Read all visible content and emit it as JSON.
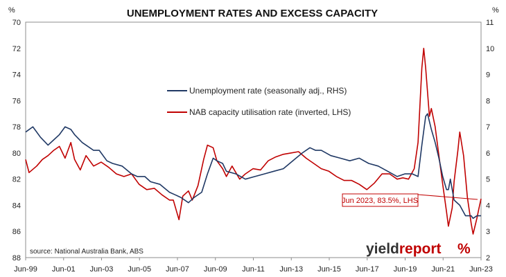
{
  "chart_data": {
    "type": "line",
    "title": "UNEMPLOYMENT RATES AND EXCESS CAPACITY",
    "left_unit": "%",
    "right_unit": "%",
    "left_axis": {
      "min": 70,
      "max": 88,
      "step": 2,
      "inverted": true,
      "ticks": [
        "70",
        "72",
        "74",
        "76",
        "78",
        "80",
        "82",
        "84",
        "86",
        "88"
      ]
    },
    "right_axis": {
      "min": 2,
      "max": 11,
      "step": 1,
      "ticks": [
        "11",
        "10",
        "9",
        "8",
        "7",
        "6",
        "5",
        "4",
        "3",
        "2"
      ]
    },
    "x_ticks": [
      "Jun-99",
      "Jun-01",
      "Jun-03",
      "Jun-05",
      "Jun-07",
      "Jun-09",
      "Jun-11",
      "Jun-13",
      "Jun-15",
      "Jun-17",
      "Jun-19",
      "Jun-21",
      "Jun-23"
    ],
    "x_range": [
      1999.42,
      2023.42
    ],
    "series": [
      {
        "name": "Unemployment rate (seasonally adj., RHS)",
        "axis": "right",
        "color": "#1f3864",
        "points": [
          [
            1999.42,
            6.8
          ],
          [
            1999.8,
            7.0
          ],
          [
            2000.2,
            6.6
          ],
          [
            2000.6,
            6.3
          ],
          [
            2000.9,
            6.5
          ],
          [
            2001.2,
            6.7
          ],
          [
            2001.5,
            7.0
          ],
          [
            2001.8,
            6.9
          ],
          [
            2002.0,
            6.7
          ],
          [
            2002.4,
            6.4
          ],
          [
            2002.8,
            6.2
          ],
          [
            2003.0,
            6.1
          ],
          [
            2003.3,
            6.1
          ],
          [
            2003.7,
            5.7
          ],
          [
            2004.0,
            5.6
          ],
          [
            2004.5,
            5.5
          ],
          [
            2005.0,
            5.2
          ],
          [
            2005.3,
            5.1
          ],
          [
            2005.7,
            5.1
          ],
          [
            2006.0,
            4.9
          ],
          [
            2006.5,
            4.8
          ],
          [
            2007.0,
            4.5
          ],
          [
            2007.3,
            4.4
          ],
          [
            2007.6,
            4.3
          ],
          [
            2008.0,
            4.1
          ],
          [
            2008.3,
            4.3
          ],
          [
            2008.7,
            4.5
          ],
          [
            2009.0,
            5.2
          ],
          [
            2009.3,
            5.8
          ],
          [
            2009.5,
            5.7
          ],
          [
            2009.8,
            5.6
          ],
          [
            2010.0,
            5.3
          ],
          [
            2010.5,
            5.2
          ],
          [
            2011.0,
            5.0
          ],
          [
            2011.5,
            5.1
          ],
          [
            2012.0,
            5.2
          ],
          [
            2012.5,
            5.3
          ],
          [
            2013.0,
            5.4
          ],
          [
            2013.5,
            5.7
          ],
          [
            2014.0,
            6.0
          ],
          [
            2014.4,
            6.2
          ],
          [
            2014.7,
            6.1
          ],
          [
            2015.0,
            6.1
          ],
          [
            2015.5,
            5.9
          ],
          [
            2016.0,
            5.8
          ],
          [
            2016.5,
            5.7
          ],
          [
            2017.0,
            5.8
          ],
          [
            2017.5,
            5.6
          ],
          [
            2018.0,
            5.5
          ],
          [
            2018.5,
            5.3
          ],
          [
            2019.0,
            5.1
          ],
          [
            2019.4,
            5.2
          ],
          [
            2019.8,
            5.2
          ],
          [
            2020.1,
            5.1
          ],
          [
            2020.3,
            6.3
          ],
          [
            2020.5,
            7.4
          ],
          [
            2020.6,
            7.5
          ],
          [
            2020.8,
            6.9
          ],
          [
            2021.0,
            6.4
          ],
          [
            2021.2,
            5.8
          ],
          [
            2021.4,
            5.1
          ],
          [
            2021.6,
            4.6
          ],
          [
            2021.7,
            4.6
          ],
          [
            2021.8,
            5.0
          ],
          [
            2022.0,
            4.2
          ],
          [
            2022.3,
            4.0
          ],
          [
            2022.6,
            3.6
          ],
          [
            2022.9,
            3.6
          ],
          [
            2023.0,
            3.5
          ],
          [
            2023.2,
            3.6
          ],
          [
            2023.42,
            3.6
          ]
        ]
      },
      {
        "name": "NAB capacity utilisation rate (inverted, LHS)",
        "axis": "left",
        "color": "#c00000",
        "points": [
          [
            1999.42,
            80.5
          ],
          [
            1999.6,
            81.5
          ],
          [
            2000.0,
            81.0
          ],
          [
            2000.3,
            80.5
          ],
          [
            2000.6,
            80.2
          ],
          [
            2000.9,
            79.8
          ],
          [
            2001.2,
            79.5
          ],
          [
            2001.5,
            80.4
          ],
          [
            2001.8,
            79.2
          ],
          [
            2002.0,
            80.5
          ],
          [
            2002.3,
            81.3
          ],
          [
            2002.6,
            80.2
          ],
          [
            2003.0,
            81.0
          ],
          [
            2003.4,
            80.7
          ],
          [
            2003.8,
            81.1
          ],
          [
            2004.2,
            81.6
          ],
          [
            2004.6,
            81.8
          ],
          [
            2005.0,
            81.6
          ],
          [
            2005.4,
            82.4
          ],
          [
            2005.8,
            82.8
          ],
          [
            2006.2,
            82.7
          ],
          [
            2006.6,
            83.2
          ],
          [
            2007.0,
            83.6
          ],
          [
            2007.2,
            83.6
          ],
          [
            2007.5,
            85.1
          ],
          [
            2007.7,
            83.3
          ],
          [
            2008.0,
            82.9
          ],
          [
            2008.2,
            83.6
          ],
          [
            2008.5,
            82.5
          ],
          [
            2008.8,
            80.5
          ],
          [
            2009.0,
            79.4
          ],
          [
            2009.3,
            79.6
          ],
          [
            2009.5,
            80.6
          ],
          [
            2009.8,
            81.2
          ],
          [
            2010.0,
            81.8
          ],
          [
            2010.3,
            81.0
          ],
          [
            2010.7,
            82.0
          ],
          [
            2011.0,
            81.6
          ],
          [
            2011.4,
            81.2
          ],
          [
            2011.8,
            81.3
          ],
          [
            2012.2,
            80.6
          ],
          [
            2012.6,
            80.3
          ],
          [
            2013.0,
            80.1
          ],
          [
            2013.4,
            80.0
          ],
          [
            2013.8,
            79.9
          ],
          [
            2014.2,
            80.4
          ],
          [
            2014.6,
            80.8
          ],
          [
            2015.0,
            81.2
          ],
          [
            2015.4,
            81.4
          ],
          [
            2015.8,
            81.8
          ],
          [
            2016.2,
            82.1
          ],
          [
            2016.6,
            82.1
          ],
          [
            2017.0,
            82.4
          ],
          [
            2017.4,
            82.8
          ],
          [
            2017.8,
            82.3
          ],
          [
            2018.2,
            81.6
          ],
          [
            2018.6,
            81.6
          ],
          [
            2019.0,
            82.0
          ],
          [
            2019.3,
            81.9
          ],
          [
            2019.6,
            82.0
          ],
          [
            2019.9,
            81.2
          ],
          [
            2020.1,
            79.2
          ],
          [
            2020.3,
            73.5
          ],
          [
            2020.4,
            72.0
          ],
          [
            2020.5,
            73.5
          ],
          [
            2020.7,
            77.2
          ],
          [
            2020.8,
            76.6
          ],
          [
            2021.0,
            78.0
          ],
          [
            2021.2,
            80.2
          ],
          [
            2021.4,
            82.4
          ],
          [
            2021.6,
            84.5
          ],
          [
            2021.7,
            85.6
          ],
          [
            2021.9,
            84.2
          ],
          [
            2022.0,
            82.2
          ],
          [
            2022.2,
            79.8
          ],
          [
            2022.3,
            78.4
          ],
          [
            2022.5,
            80.2
          ],
          [
            2022.7,
            83.4
          ],
          [
            2022.9,
            85.4
          ],
          [
            2023.0,
            86.2
          ],
          [
            2023.2,
            85.0
          ],
          [
            2023.3,
            84.3
          ],
          [
            2023.42,
            83.5
          ]
        ]
      }
    ],
    "legend_position": "upper-center",
    "grid": false,
    "annotation": "Jun 2023, 83.5%, LHS",
    "source": "source: National Australia Bank, ABS",
    "logo": {
      "part1": "yield",
      "part2": "report",
      "accent": "%"
    }
  }
}
